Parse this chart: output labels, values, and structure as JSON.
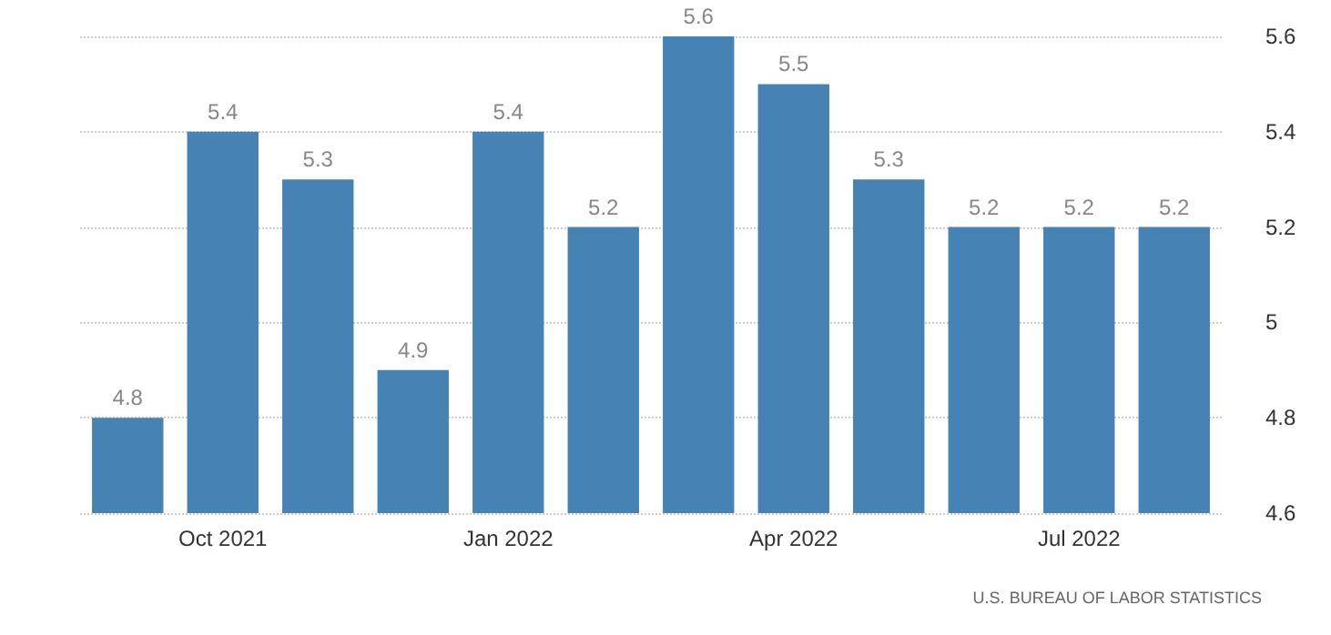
{
  "chart_data": {
    "type": "bar",
    "categories": [
      null,
      "Oct 2021",
      null,
      null,
      "Jan 2022",
      null,
      null,
      "Apr 2022",
      null,
      null,
      "Jul 2022",
      null
    ],
    "values": [
      4.8,
      5.4,
      5.3,
      4.9,
      5.4,
      5.2,
      5.6,
      5.5,
      5.3,
      5.2,
      5.2,
      5.2
    ],
    "color": "#4682b4",
    "ylim": [
      4.6,
      5.6
    ],
    "yticks": [
      4.6,
      4.8,
      5,
      5.2,
      5.4,
      5.6
    ],
    "grid": "y",
    "data_labels": true,
    "annotations": [
      "U.S. BUREAU OF LABOR STATISTICS"
    ]
  }
}
